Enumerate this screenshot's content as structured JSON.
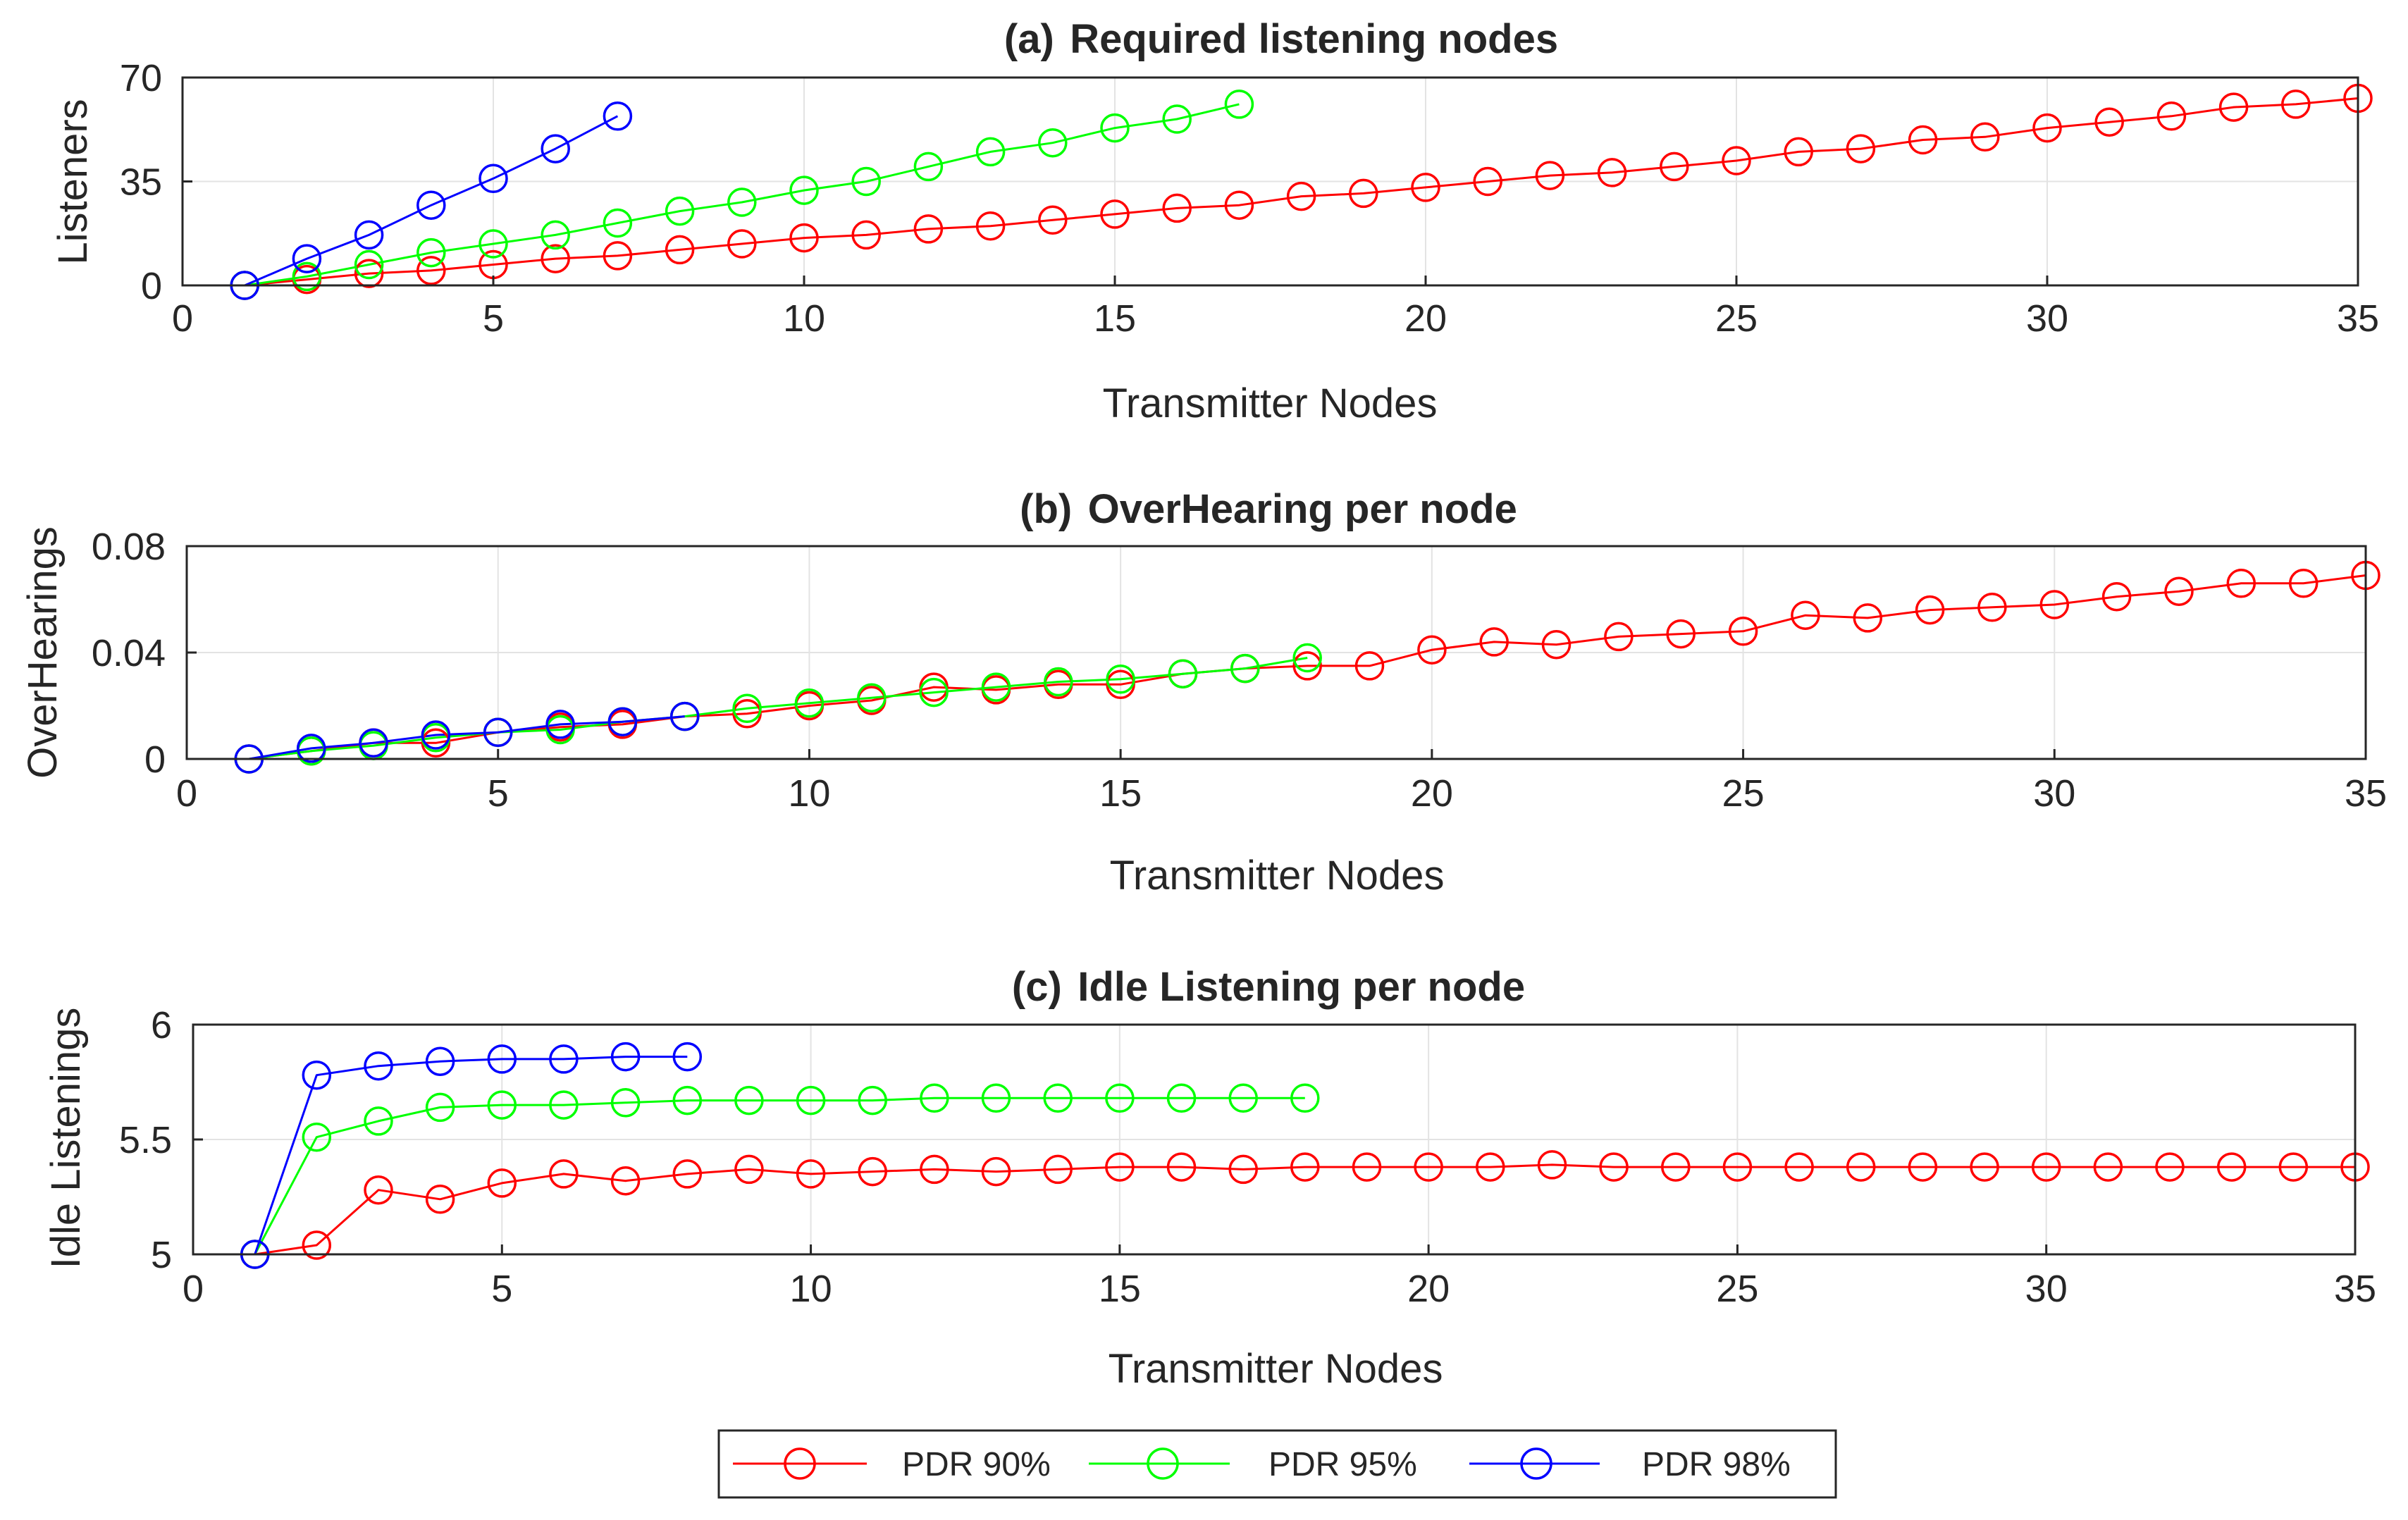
{
  "chart_data": [
    {
      "type": "line",
      "title_tag": "(a)",
      "title": "Required listening nodes",
      "xlabel": "Transmitter Nodes",
      "ylabel": "Listeners",
      "xlim": [
        0,
        35
      ],
      "ylim": [
        0,
        70
      ],
      "xticks": [
        0,
        5,
        10,
        15,
        20,
        25,
        30,
        35
      ],
      "yticks": [
        0,
        35,
        70
      ],
      "xtick_labels": [
        "0",
        "5",
        "10",
        "15",
        "20",
        "25",
        "30",
        "35"
      ],
      "ytick_labels": [
        "0",
        "35",
        "70"
      ],
      "grid": true,
      "series": [
        {
          "name": "PDR 90%",
          "color": "#ff0000",
          "x": [
            1,
            2,
            3,
            4,
            5,
            6,
            7,
            8,
            9,
            10,
            11,
            12,
            13,
            14,
            15,
            16,
            17,
            18,
            19,
            20,
            21,
            22,
            23,
            24,
            25,
            26,
            27,
            28,
            29,
            30,
            31,
            32,
            33,
            34,
            35
          ],
          "y": [
            0,
            2,
            4,
            5,
            7,
            9,
            10,
            12,
            14,
            16,
            17,
            19,
            20,
            22,
            24,
            26,
            27,
            30,
            31,
            33,
            35,
            37,
            38,
            40,
            42,
            45,
            46,
            49,
            50,
            53,
            55,
            57,
            60,
            61,
            63
          ]
        },
        {
          "name": "PDR 95%",
          "color": "#00ff00",
          "x": [
            1,
            2,
            3,
            4,
            5,
            6,
            7,
            8,
            9,
            10,
            11,
            12,
            13,
            14,
            15,
            16,
            17
          ],
          "y": [
            0,
            3,
            7,
            11,
            14,
            17,
            21,
            25,
            28,
            32,
            35,
            40,
            45,
            48,
            53,
            56,
            61
          ]
        },
        {
          "name": "PDR 98%",
          "color": "#0000ff",
          "x": [
            1,
            2,
            3,
            4,
            5,
            6,
            7
          ],
          "y": [
            0,
            9,
            17,
            27,
            36,
            46,
            57
          ]
        }
      ]
    },
    {
      "type": "line",
      "title_tag": "(b)",
      "title": "OverHearing per node",
      "xlabel": "Transmitter Nodes",
      "ylabel": "OverHearings",
      "xlim": [
        0,
        35
      ],
      "ylim": [
        0,
        0.08
      ],
      "xticks": [
        0,
        5,
        10,
        15,
        20,
        25,
        30,
        35
      ],
      "yticks": [
        0,
        0.04,
        0.08
      ],
      "xtick_labels": [
        "0",
        "5",
        "10",
        "15",
        "20",
        "25",
        "30",
        "35"
      ],
      "ytick_labels": [
        "0",
        "0.04",
        "0.08"
      ],
      "grid": true,
      "series": [
        {
          "name": "PDR 90%",
          "color": "#ff0000",
          "x": [
            1,
            2,
            3,
            4,
            5,
            6,
            7,
            8,
            9,
            10,
            11,
            12,
            13,
            14,
            15,
            16,
            17,
            18,
            19,
            20,
            21,
            22,
            23,
            24,
            25,
            26,
            27,
            28,
            29,
            30,
            31,
            32,
            33,
            34,
            35
          ],
          "y": [
            0,
            0.003,
            0.006,
            0.006,
            0.01,
            0.012,
            0.013,
            0.016,
            0.017,
            0.02,
            0.022,
            0.027,
            0.026,
            0.028,
            0.028,
            0.032,
            0.034,
            0.035,
            0.035,
            0.041,
            0.044,
            0.043,
            0.046,
            0.047,
            0.048,
            0.054,
            0.053,
            0.056,
            0.057,
            0.058,
            0.061,
            0.063,
            0.066,
            0.066,
            0.069
          ]
        },
        {
          "name": "PDR 95%",
          "color": "#00ff00",
          "x": [
            1,
            2,
            3,
            4,
            5,
            6,
            7,
            8,
            9,
            10,
            11,
            12,
            13,
            14,
            15,
            16,
            17,
            18
          ],
          "y": [
            0,
            0.003,
            0.005,
            0.008,
            0.01,
            0.011,
            0.014,
            0.016,
            0.019,
            0.021,
            0.023,
            0.025,
            0.027,
            0.029,
            0.03,
            0.032,
            0.034,
            0.038
          ]
        },
        {
          "name": "PDR 98%",
          "color": "#0000ff",
          "x": [
            1,
            2,
            3,
            4,
            5,
            6,
            7,
            8
          ],
          "y": [
            0,
            0.004,
            0.006,
            0.009,
            0.01,
            0.013,
            0.014,
            0.016
          ]
        }
      ]
    },
    {
      "type": "line",
      "title_tag": "(c)",
      "title": "Idle Listening per node",
      "xlabel": "Transmitter Nodes",
      "ylabel": "Idle Listenings",
      "xlim": [
        0,
        35
      ],
      "ylim": [
        5,
        6
      ],
      "xticks": [
        0,
        5,
        10,
        15,
        20,
        25,
        30,
        35
      ],
      "yticks": [
        5,
        5.5,
        6
      ],
      "xtick_labels": [
        "0",
        "5",
        "10",
        "15",
        "20",
        "25",
        "30",
        "35"
      ],
      "ytick_labels": [
        "5",
        "5.5",
        "6"
      ],
      "grid": true,
      "series": [
        {
          "name": "PDR 90%",
          "color": "#ff0000",
          "x": [
            1,
            2,
            3,
            4,
            5,
            6,
            7,
            8,
            9,
            10,
            11,
            12,
            13,
            14,
            15,
            16,
            17,
            18,
            19,
            20,
            21,
            22,
            23,
            24,
            25,
            26,
            27,
            28,
            29,
            30,
            31,
            32,
            33,
            34,
            35
          ],
          "y": [
            5,
            5.04,
            5.28,
            5.24,
            5.31,
            5.35,
            5.32,
            5.35,
            5.37,
            5.35,
            5.36,
            5.37,
            5.36,
            5.37,
            5.38,
            5.38,
            5.37,
            5.38,
            5.38,
            5.38,
            5.38,
            5.39,
            5.38,
            5.38,
            5.38,
            5.38,
            5.38,
            5.38,
            5.38,
            5.38,
            5.38,
            5.38,
            5.38,
            5.38,
            5.38
          ]
        },
        {
          "name": "PDR 95%",
          "color": "#00ff00",
          "x": [
            1,
            2,
            3,
            4,
            5,
            6,
            7,
            8,
            9,
            10,
            11,
            12,
            13,
            14,
            15,
            16,
            17,
            18
          ],
          "y": [
            5,
            5.51,
            5.58,
            5.64,
            5.65,
            5.65,
            5.66,
            5.67,
            5.67,
            5.67,
            5.67,
            5.68,
            5.68,
            5.68,
            5.68,
            5.68,
            5.68,
            5.68
          ]
        },
        {
          "name": "PDR 98%",
          "color": "#0000ff",
          "x": [
            1,
            2,
            3,
            4,
            5,
            6,
            7,
            8
          ],
          "y": [
            5,
            5.78,
            5.82,
            5.84,
            5.85,
            5.85,
            5.86,
            5.86
          ]
        }
      ]
    }
  ],
  "legend": {
    "placement": "bottom-center",
    "entries": [
      {
        "label": "PDR 90%",
        "color": "#ff0000"
      },
      {
        "label": "PDR 95%",
        "color": "#00ff00"
      },
      {
        "label": "PDR 98%",
        "color": "#0000ff"
      }
    ]
  }
}
